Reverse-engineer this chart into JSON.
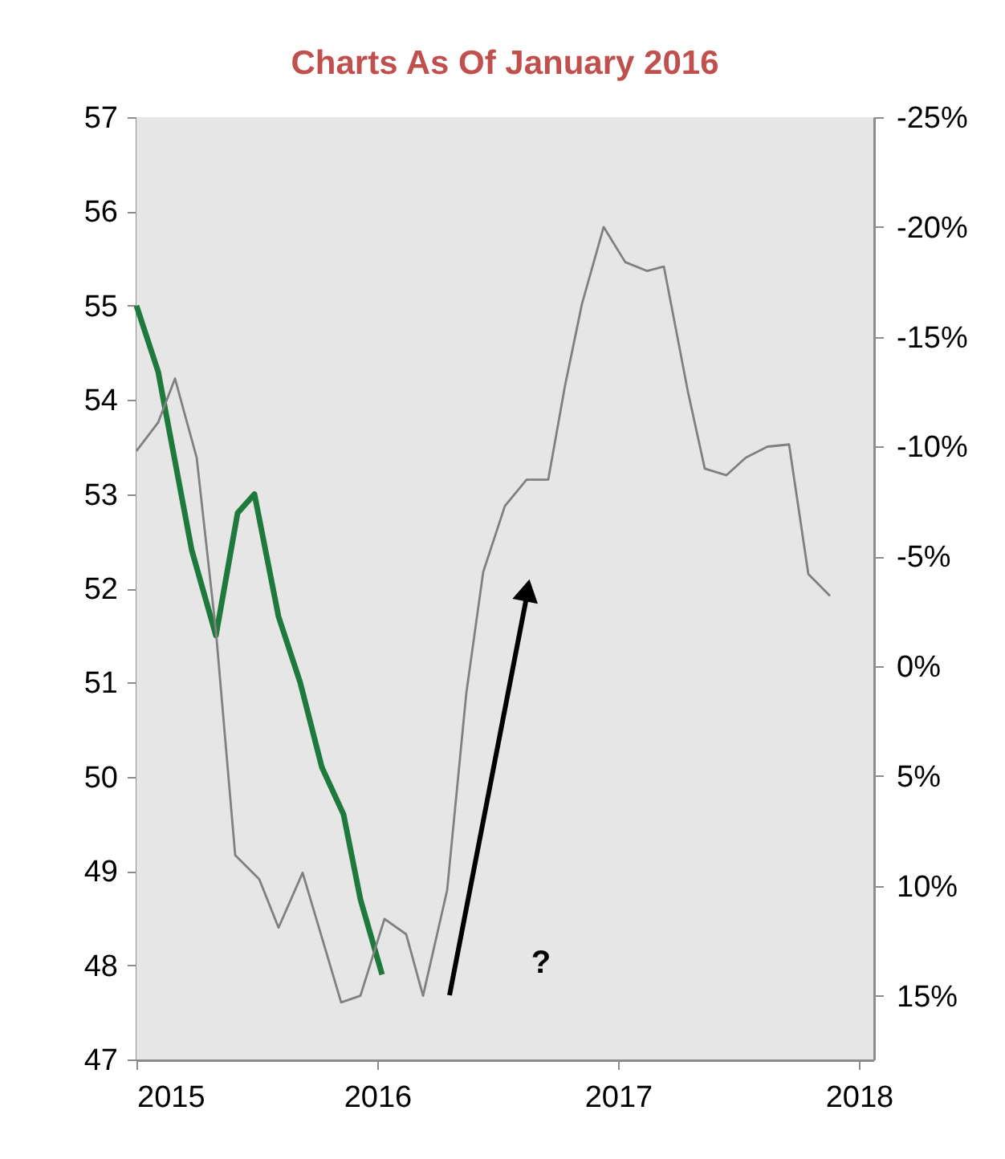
{
  "chart_data": {
    "type": "line",
    "title": "Charts As Of January 2016",
    "series": [
      {
        "color": "#1e7a3c",
        "x": [
          2015.0,
          2015.09,
          2015.23,
          2015.33,
          2015.42,
          2015.49,
          2015.59,
          2015.68,
          2015.77,
          2015.86,
          2015.93,
          2016.02
        ],
        "values": [
          55.0,
          54.3,
          52.4,
          51.5,
          52.8,
          53.0,
          51.7,
          51.0,
          50.1,
          49.6,
          48.7,
          47.9
        ]
      },
      {
        "color": "#808080",
        "axis": "y2",
        "x": [
          2015.0,
          2015.09,
          2015.16,
          2015.25,
          2015.33,
          2015.41,
          2015.51,
          2015.59,
          2015.69,
          2015.85,
          2015.93,
          2016.03,
          2016.12,
          2016.19,
          2016.29,
          2016.37,
          2016.44,
          2016.53,
          2016.62,
          2016.71,
          2016.78,
          2016.85,
          2016.94,
          2017.03,
          2017.12,
          2017.19,
          2017.29,
          2017.36,
          2017.45,
          2017.53,
          2017.62,
          2017.71,
          2017.79,
          2017.88
        ],
        "values": [
          -9.8,
          -11.1,
          -13.1,
          -9.5,
          -1.6,
          8.6,
          9.7,
          11.9,
          9.4,
          15.3,
          15.0,
          11.5,
          12.2,
          15.0,
          10.2,
          1.2,
          -4.3,
          -7.3,
          -8.5,
          -8.5,
          -12.8,
          -16.5,
          -20.0,
          -18.4,
          -18.0,
          -18.2,
          -12.5,
          -9.0,
          -8.7,
          -9.5,
          -10.0,
          -10.1,
          -4.2,
          -3.2
        ]
      }
    ],
    "xlim": [
      2015,
      2018.06
    ],
    "xticks": [
      2015,
      2016,
      2017,
      2018
    ],
    "ylim": [
      47,
      57
    ],
    "yticks": [
      47,
      48,
      49,
      50,
      51,
      52,
      53,
      54,
      55,
      56,
      57
    ],
    "y2lim": [
      17.9,
      -25
    ],
    "y2ticks": [
      {
        "value": -25,
        "label": "-25%"
      },
      {
        "value": -20,
        "label": "-20%"
      },
      {
        "value": -15,
        "label": "-15%"
      },
      {
        "value": -10,
        "label": "-10%"
      },
      {
        "value": -5,
        "label": "-5%"
      },
      {
        "value": 0,
        "label": "0%"
      },
      {
        "value": 5,
        "label": "5%"
      },
      {
        "value": 10,
        "label": "10%"
      },
      {
        "value": 15,
        "label": "15%"
      }
    ],
    "annotations": [
      "?"
    ]
  }
}
